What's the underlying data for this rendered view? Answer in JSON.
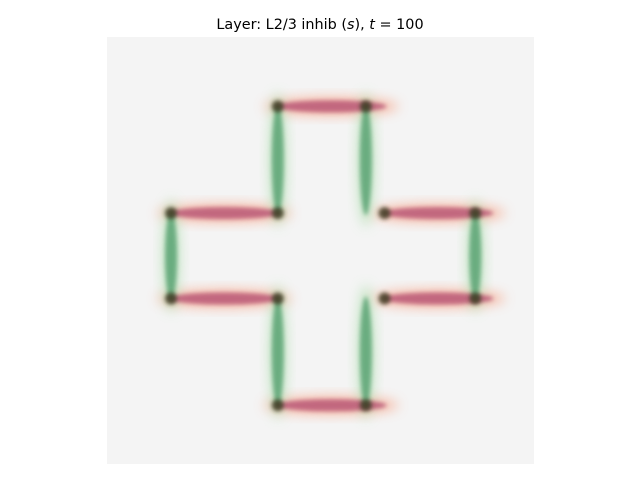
{
  "chart_data": {
    "type": "heatmap",
    "title": {
      "prefix": "Layer: L2/3 inhib (",
      "sym_s": "s",
      "mid": "), ",
      "sym_t": "t",
      "suffix": " = 100"
    },
    "grid_size": 16,
    "background_color": "#f4f4f4",
    "colors": {
      "horizontal": "#bd5f7a",
      "horizontal_halo": "#f7a386",
      "vertical": "#5aa373",
      "vertical_halo": "#b2e0b2",
      "junction": "#3d3a20"
    },
    "horizontal_segments": [
      {
        "x0": 5.9,
        "x1": 9.9,
        "y": 2.1
      },
      {
        "x0": 1.9,
        "x1": 5.9,
        "y": 6.1
      },
      {
        "x0": 9.9,
        "x1": 13.9,
        "y": 6.1
      },
      {
        "x0": 1.9,
        "x1": 5.9,
        "y": 9.3
      },
      {
        "x0": 9.9,
        "x1": 13.9,
        "y": 9.3
      },
      {
        "x0": 5.9,
        "x1": 9.9,
        "y": 13.3
      }
    ],
    "vertical_segments": [
      {
        "x": 5.9,
        "y0": 2.1,
        "y1": 6.1
      },
      {
        "x": 9.2,
        "y0": 2.1,
        "y1": 6.1
      },
      {
        "x": 1.9,
        "y0": 6.1,
        "y1": 9.3
      },
      {
        "x": 13.3,
        "y0": 6.1,
        "y1": 9.3
      },
      {
        "x": 5.9,
        "y0": 9.3,
        "y1": 13.3
      },
      {
        "x": 9.2,
        "y0": 9.3,
        "y1": 13.3
      }
    ],
    "junctions": [
      {
        "x": 5.9,
        "y": 2.1
      },
      {
        "x": 9.2,
        "y": 2.1
      },
      {
        "x": 1.9,
        "y": 6.1
      },
      {
        "x": 5.9,
        "y": 6.1
      },
      {
        "x": 9.9,
        "y": 6.1
      },
      {
        "x": 13.3,
        "y": 6.1
      },
      {
        "x": 1.9,
        "y": 9.3
      },
      {
        "x": 5.9,
        "y": 9.3
      },
      {
        "x": 9.9,
        "y": 9.3
      },
      {
        "x": 13.3,
        "y": 9.3
      },
      {
        "x": 5.9,
        "y": 13.3
      },
      {
        "x": 9.2,
        "y": 13.3
      }
    ]
  }
}
